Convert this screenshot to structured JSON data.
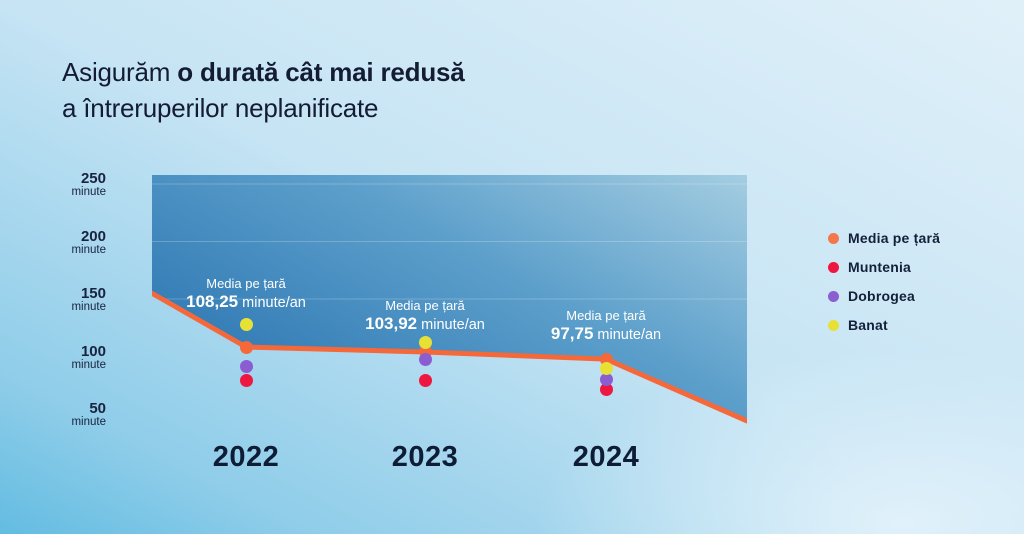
{
  "title": {
    "prefix": "Asigurăm ",
    "bold": "o durată cât mai redusă",
    "line2": "a întreruperilor neplanificate"
  },
  "axis": {
    "ticks": [
      {
        "value": "250",
        "unit": "minute"
      },
      {
        "value": "200",
        "unit": "minute"
      },
      {
        "value": "150",
        "unit": "minute"
      },
      {
        "value": "100",
        "unit": "minute"
      },
      {
        "value": "50",
        "unit": "minute"
      }
    ]
  },
  "legend": [
    {
      "id": "media",
      "label": "Media pe țară",
      "color": "#F4774B"
    },
    {
      "id": "muntenia",
      "label": "Muntenia",
      "color": "#EE1741"
    },
    {
      "id": "dobrogea",
      "label": "Dobrogea",
      "color": "#8A5ED0"
    },
    {
      "id": "banat",
      "label": "Banat",
      "color": "#E7E135"
    }
  ],
  "chart_data": {
    "type": "line",
    "x": [
      "2022",
      "2023",
      "2024"
    ],
    "ylabel": "minute",
    "ylim": [
      50,
      250
    ],
    "grid": "subtle horizontal lines inside filled area at 250/200/150",
    "legend_position": "right",
    "series": [
      {
        "id": "media",
        "name": "Media pe țară",
        "color": "#F4683A",
        "style": "line+area+points",
        "values": [
          108.25,
          103.92,
          97.75
        ]
      },
      {
        "id": "muntenia",
        "name": "Muntenia",
        "color": "#EE1741",
        "style": "points",
        "estimated": true,
        "values": [
          79,
          79,
          71
        ]
      },
      {
        "id": "dobrogea",
        "name": "Dobrogea",
        "color": "#8A5ED0",
        "style": "points",
        "estimated": true,
        "values": [
          91,
          97,
          80
        ]
      },
      {
        "id": "banat",
        "name": "Banat",
        "color": "#E7E135",
        "style": "points",
        "estimated": true,
        "values": [
          128,
          112,
          90
        ]
      }
    ],
    "line_edge_estimates": {
      "left_minutes": 155,
      "right_minutes": 44,
      "estimated": true
    },
    "annotations": [
      {
        "x": "2022",
        "line1": "Media pe țară",
        "value": "108,25",
        "suffix": " minute/an"
      },
      {
        "x": "2023",
        "line1": "Media pe țară",
        "value": "103,92",
        "suffix": " minute/an"
      },
      {
        "x": "2024",
        "line1": "Media pe țară",
        "value": "97,75",
        "suffix": " minute/an"
      }
    ],
    "colors": {
      "area_gradient": [
        "#2B75B1",
        "#A4CDE1"
      ],
      "line": "#F4683A",
      "text_dark": "#13203C",
      "annotation_text": "#FFFFFF"
    }
  }
}
